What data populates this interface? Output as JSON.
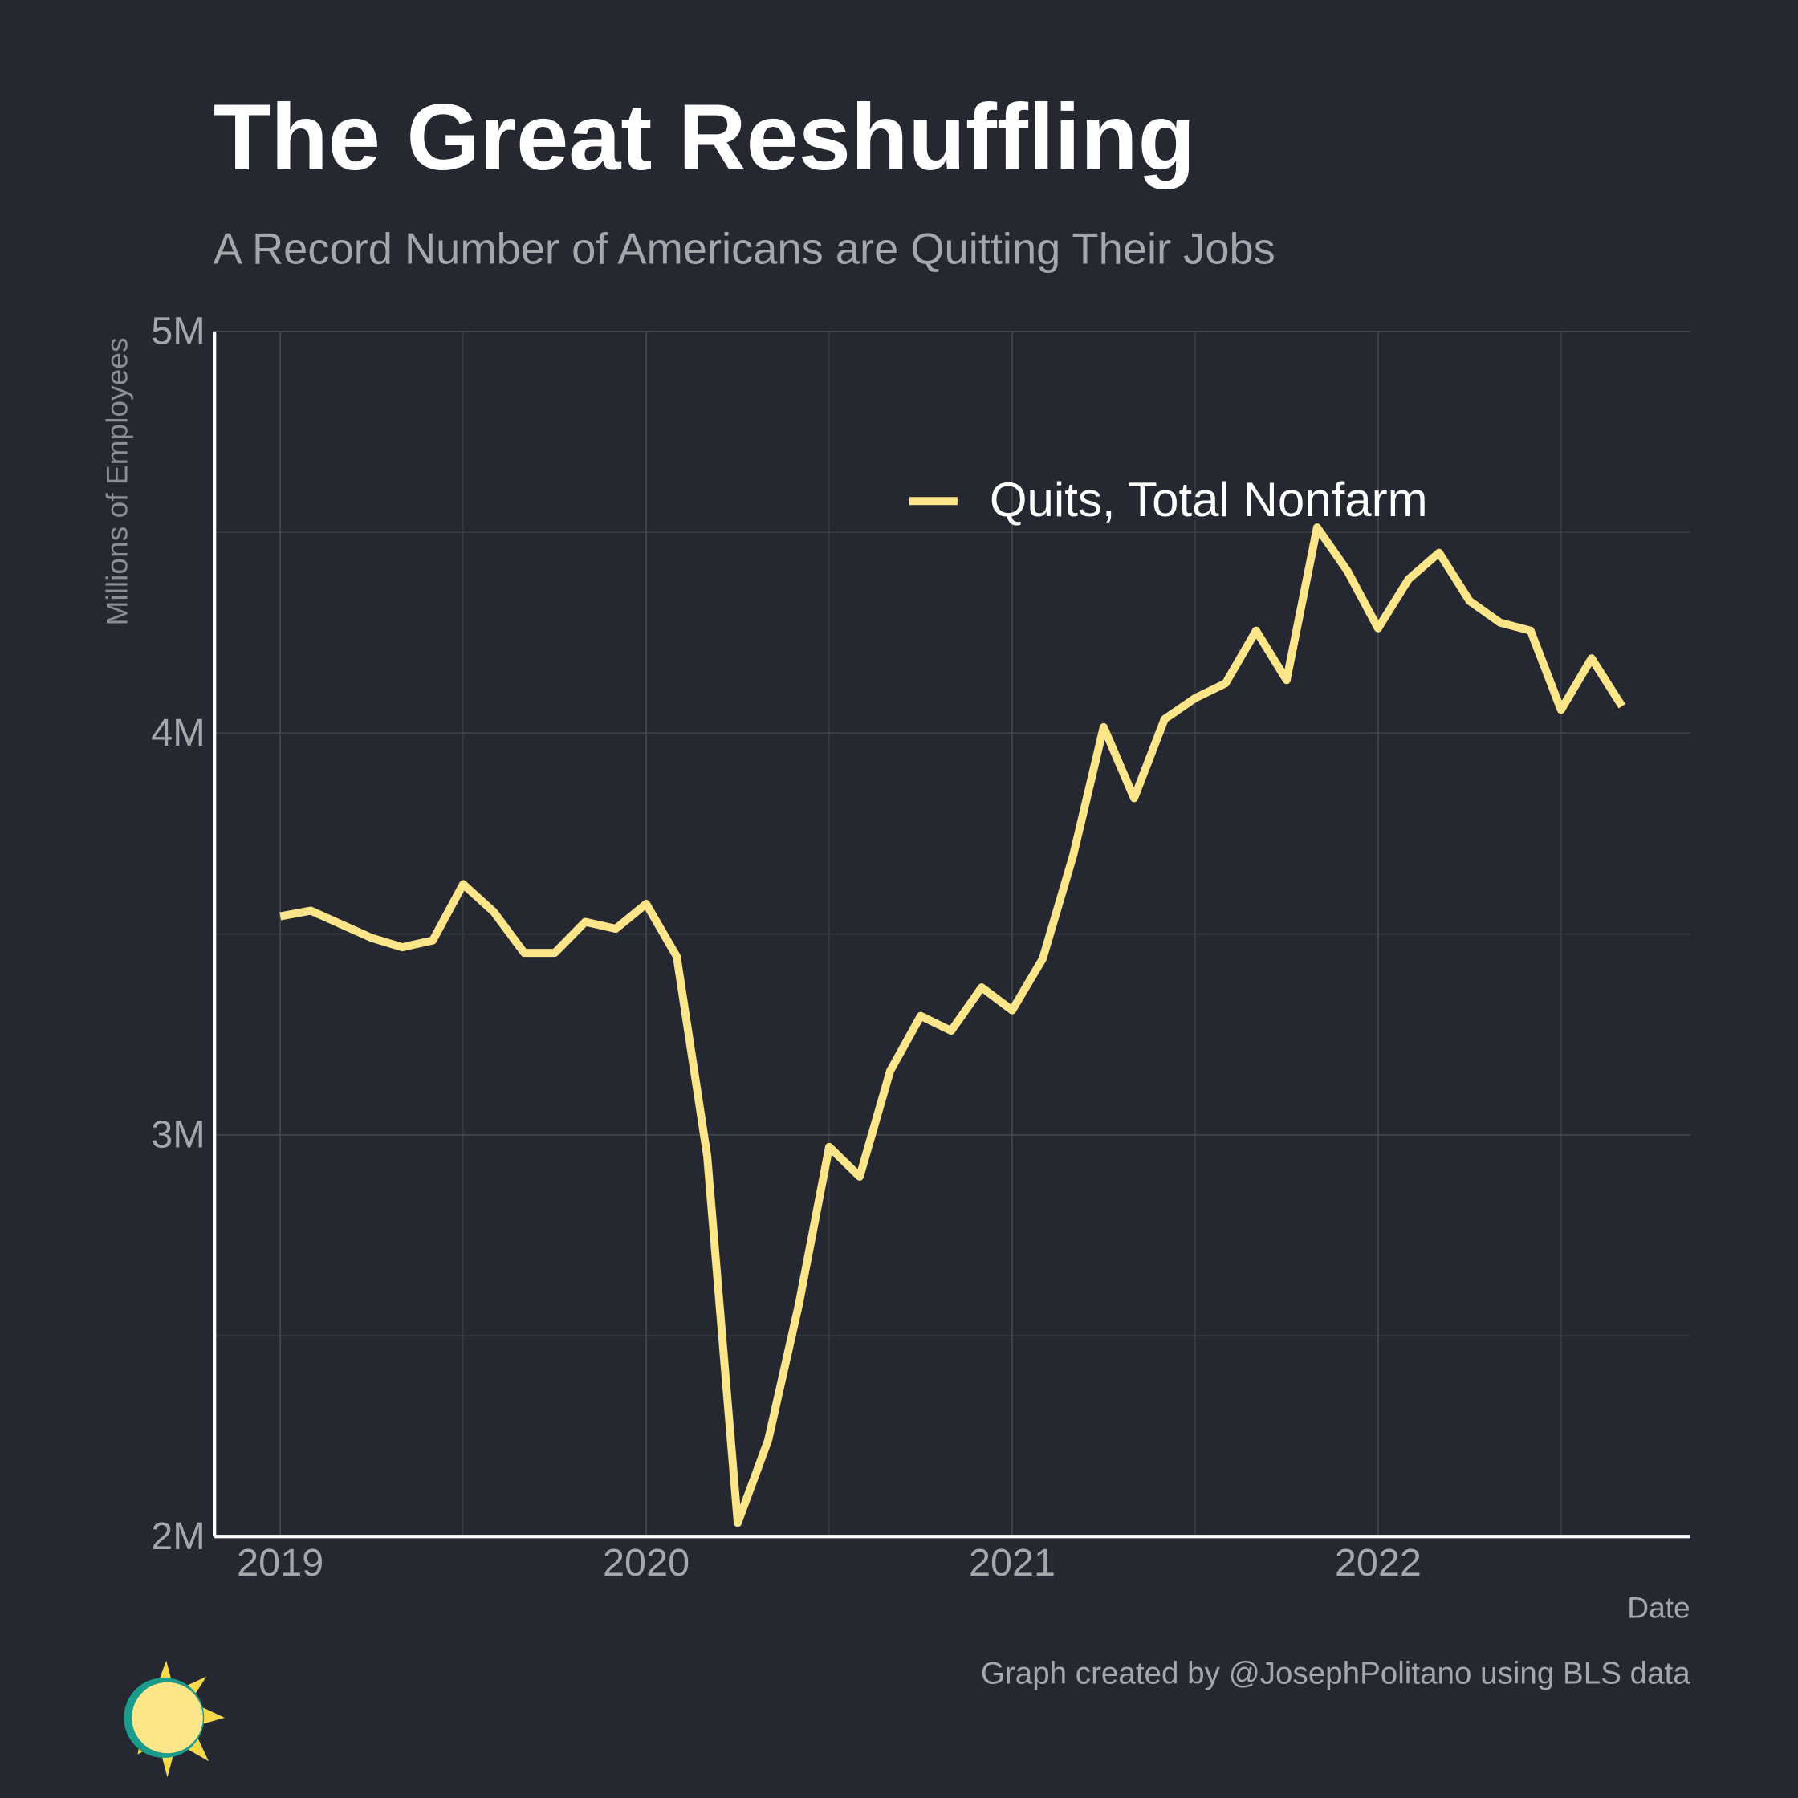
{
  "chart_data": {
    "type": "line",
    "title": "The Great Reshuffling",
    "subtitle": "A Record Number of Americans are Quitting Their Jobs",
    "y_label": "Millions of Employees",
    "x_label": "Date",
    "caption": "Graph created by @JosephPolitano using BLS data",
    "legend_position": "top-right",
    "grid": true,
    "x": [
      "2019-01",
      "2019-02",
      "2019-03",
      "2019-04",
      "2019-05",
      "2019-06",
      "2019-07",
      "2019-08",
      "2019-09",
      "2019-10",
      "2019-11",
      "2019-12",
      "2020-01",
      "2020-02",
      "2020-03",
      "2020-04",
      "2020-05",
      "2020-06",
      "2020-07",
      "2020-08",
      "2020-09",
      "2020-10",
      "2020-11",
      "2020-12",
      "2021-01",
      "2021-02",
      "2021-03",
      "2021-04",
      "2021-05",
      "2021-06",
      "2021-07",
      "2021-08",
      "2021-09",
      "2021-10",
      "2021-11",
      "2021-12",
      "2022-01",
      "2022-02",
      "2022-03",
      "2022-04",
      "2022-05",
      "2022-06",
      "2022-07",
      "2022-08",
      "2022-09"
    ],
    "series": [
      {
        "name": "Quits, Total Nonfarm",
        "color": "#fde68a",
        "values": [
          3.544,
          3.558,
          3.524,
          3.49,
          3.467,
          3.484,
          3.624,
          3.555,
          3.453,
          3.453,
          3.53,
          3.513,
          3.575,
          3.444,
          2.947,
          2.034,
          2.24,
          2.576,
          2.97,
          2.896,
          3.159,
          3.296,
          3.259,
          3.367,
          3.31,
          3.438,
          3.695,
          4.015,
          3.838,
          4.035,
          4.087,
          4.124,
          4.255,
          4.132,
          4.512,
          4.403,
          4.261,
          4.383,
          4.449,
          4.329,
          4.275,
          4.255,
          4.058,
          4.186,
          4.067
        ]
      }
    ],
    "xlim": [
      2018.82,
      2022.853
    ],
    "xticks": [
      2019,
      2020,
      2021,
      2022
    ],
    "minor_xticks": [
      2019.5,
      2020.5,
      2021.5,
      2022.5
    ],
    "ylim": [
      2,
      5
    ],
    "yticks": [
      {
        "value": 2,
        "label": "2M"
      },
      {
        "value": 3,
        "label": "3M"
      },
      {
        "value": 4,
        "label": "4M"
      },
      {
        "value": 5,
        "label": "5M"
      }
    ],
    "minor_yticks": [
      2.5,
      3.5,
      4.5
    ]
  }
}
